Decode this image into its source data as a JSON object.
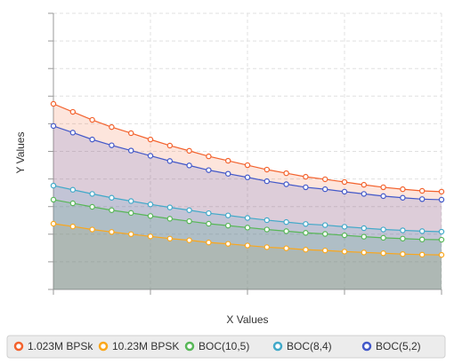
{
  "chart_data": {
    "type": "area",
    "x_label": "X Values",
    "y_label": "Y Values",
    "x": [
      0,
      1,
      2,
      3,
      4,
      5,
      6,
      7,
      8,
      9,
      10,
      11,
      12,
      13,
      14,
      15,
      16,
      17,
      18,
      19,
      20
    ],
    "xlim": [
      0,
      20
    ],
    "xticks": [
      0,
      5,
      10,
      15,
      20
    ],
    "ylim": [
      0,
      10
    ],
    "yticks": [
      0,
      1,
      2,
      3,
      4,
      5,
      6,
      7,
      8,
      9,
      10
    ],
    "grid": true,
    "tick_labels": false,
    "legend": "bottom",
    "series": [
      {
        "name": "1.023M BPSk",
        "color": "#f3622d",
        "values": [
          6.72,
          6.43,
          6.14,
          5.88,
          5.66,
          5.43,
          5.21,
          5.02,
          4.82,
          4.66,
          4.5,
          4.34,
          4.21,
          4.08,
          3.99,
          3.89,
          3.79,
          3.7,
          3.63,
          3.57,
          3.54
        ]
      },
      {
        "name": "10.23M BPSK",
        "color": "#fba71b",
        "values": [
          2.38,
          2.28,
          2.17,
          2.08,
          2.0,
          1.92,
          1.84,
          1.78,
          1.7,
          1.65,
          1.59,
          1.53,
          1.49,
          1.44,
          1.41,
          1.37,
          1.34,
          1.31,
          1.28,
          1.26,
          1.25
        ]
      },
      {
        "name": "BOC(10,5)",
        "color": "#57b757",
        "values": [
          3.25,
          3.12,
          2.99,
          2.87,
          2.77,
          2.66,
          2.56,
          2.47,
          2.38,
          2.31,
          2.24,
          2.17,
          2.11,
          2.05,
          2.01,
          1.96,
          1.91,
          1.87,
          1.84,
          1.81,
          1.8
        ]
      },
      {
        "name": "BOC(8,4)",
        "color": "#41a9c9",
        "values": [
          3.76,
          3.61,
          3.46,
          3.32,
          3.2,
          3.08,
          2.97,
          2.87,
          2.76,
          2.68,
          2.59,
          2.51,
          2.44,
          2.37,
          2.33,
          2.27,
          2.22,
          2.17,
          2.14,
          2.11,
          2.09
        ]
      },
      {
        "name": "BOC(5,2)",
        "color": "#4258c9",
        "values": [
          5.92,
          5.68,
          5.43,
          5.22,
          5.03,
          4.84,
          4.65,
          4.49,
          4.32,
          4.19,
          4.06,
          3.92,
          3.81,
          3.7,
          3.63,
          3.54,
          3.46,
          3.38,
          3.32,
          3.27,
          3.25
        ]
      }
    ]
  }
}
